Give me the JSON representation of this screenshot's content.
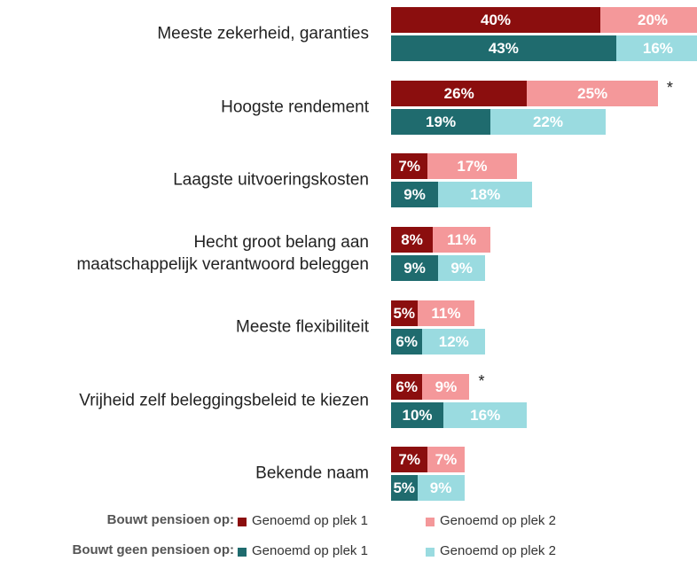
{
  "chart_data": {
    "type": "stacked-bar-grouped",
    "categories": [
      "Meeste zekerheid, garanties",
      "Hoogste rendement",
      "Laagste uitvoeringskosten",
      "Hecht groot belang aan\nmaatschappelijk verantwoord beleggen",
      "Meeste flexibiliteit",
      "Vrijheid zelf beleggingsbeleid te kiezen",
      "Bekende naam"
    ],
    "notes": [
      null,
      "*",
      null,
      null,
      null,
      "*",
      null
    ],
    "groups": [
      {
        "name": "Bouwt pensioen op:",
        "series": [
          {
            "name": "Genoemd op plek 1",
            "color": "#8b0e0e",
            "values": [
              40,
              26,
              7,
              8,
              5,
              6,
              7
            ],
            "value_labels": [
              "40%",
              "26%",
              "7%",
              "8%",
              "5%",
              "6%",
              "7%"
            ]
          },
          {
            "name": "Genoemd op plek 2",
            "color": "#f4989a",
            "values": [
              20,
              25,
              17,
              11,
              11,
              9,
              7
            ],
            "value_labels": [
              "20%",
              "25%",
              "17%",
              "11%",
              "11%",
              "9%",
              "7%"
            ]
          }
        ]
      },
      {
        "name": "Bouwt geen pensioen op:",
        "series": [
          {
            "name": "Genoemd op plek 1",
            "color": "#1f6b6e",
            "values": [
              43,
              19,
              9,
              9,
              6,
              10,
              5
            ],
            "value_labels": [
              "43%",
              "19%",
              "9%",
              "9%",
              "6%",
              "10%",
              "5%"
            ]
          },
          {
            "name": "Genoemd op plek 2",
            "color": "#9adbe0",
            "values": [
              16,
              22,
              18,
              9,
              12,
              16,
              9
            ],
            "value_labels": [
              "16%",
              "22%",
              "18%",
              "9%",
              "12%",
              "16%",
              "9%"
            ]
          }
        ]
      }
    ]
  }
}
